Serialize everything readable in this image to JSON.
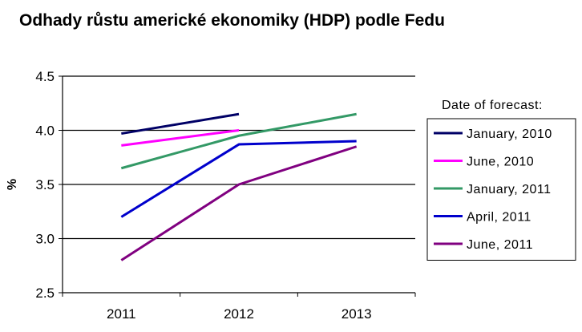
{
  "chart_data": {
    "type": "line",
    "title": "Odhady růstu americké ekonomiky (HDP) podle Fedu",
    "xlabel": "",
    "ylabel": "%",
    "categories": [
      "2011",
      "2012",
      "2013"
    ],
    "ylim": [
      2.5,
      4.5
    ],
    "yticks": [
      "2.5",
      "3.0",
      "3.5",
      "4.0",
      "4.5"
    ],
    "grid": true,
    "legend_title": "Date of forecast:",
    "legend_position": "right",
    "series": [
      {
        "name": "January, 2010",
        "color": "#000066",
        "values": [
          3.97,
          4.15,
          null
        ]
      },
      {
        "name": "June, 2010",
        "color": "#ff00ff",
        "values": [
          3.86,
          4.0,
          null
        ]
      },
      {
        "name": "January, 2011",
        "color": "#339966",
        "values": [
          3.65,
          3.95,
          4.15
        ]
      },
      {
        "name": "April, 2011",
        "color": "#0000cc",
        "values": [
          3.2,
          3.87,
          3.9
        ]
      },
      {
        "name": "June, 2011",
        "color": "#800080",
        "values": [
          2.8,
          3.5,
          3.85
        ]
      }
    ]
  }
}
